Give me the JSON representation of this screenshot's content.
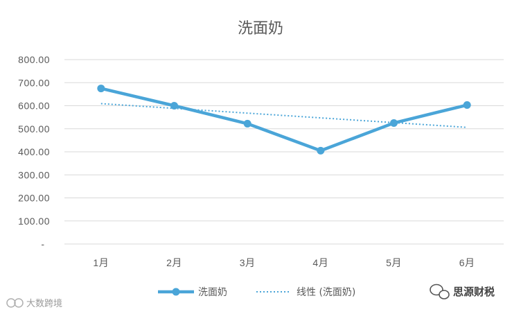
{
  "chart_data": {
    "type": "line",
    "title": "洗面奶",
    "categories": [
      "1月",
      "2月",
      "3月",
      "4月",
      "5月",
      "6月"
    ],
    "series": [
      {
        "name": "洗面奶",
        "values": [
          675,
          600,
          522,
          405,
          525,
          603
        ],
        "color": "#4aa5d8"
      }
    ],
    "trendline": {
      "name": "线性 (洗面奶)",
      "start": 609,
      "end": 506,
      "color": "#4aa5d8",
      "style": "dotted"
    },
    "y_tick_labels": [
      "-",
      "100.00",
      "200.00",
      "300.00",
      "400.00",
      "500.00",
      "600.00",
      "700.00",
      "800.00"
    ],
    "ylim": [
      0,
      800
    ],
    "grid": true,
    "legend_position": "bottom"
  },
  "watermark": {
    "right_text": "思源财税",
    "left_text": "大数跨境"
  }
}
